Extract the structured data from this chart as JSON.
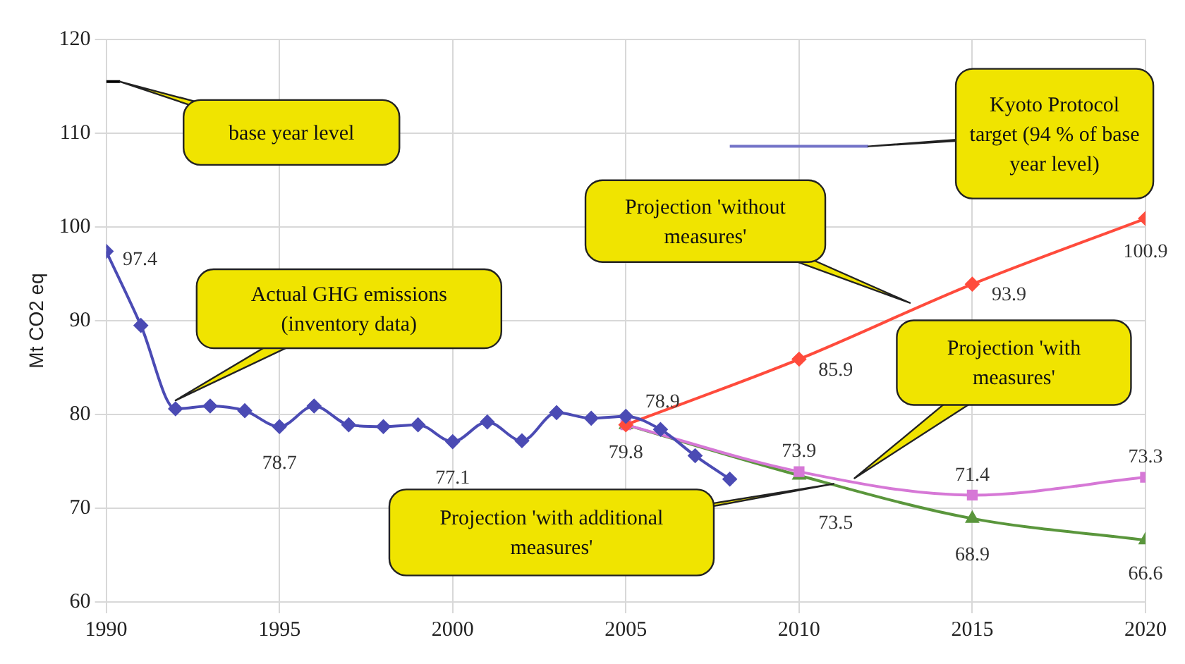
{
  "chart_data": {
    "type": "line",
    "ylabel": "Mt CO2 eq",
    "xlim": [
      1990,
      2020
    ],
    "xticks": [
      1990,
      1995,
      2000,
      2005,
      2010,
      2015,
      2020
    ],
    "ylim": [
      60,
      120
    ],
    "yticks": [
      60,
      70,
      80,
      90,
      100,
      110,
      120
    ],
    "grid": true,
    "series": [
      {
        "color": "#4b4bb4",
        "marker": "diamond",
        "x": [
          1990,
          1991,
          1992,
          1993,
          1994,
          1995,
          1996,
          1997,
          1998,
          1999,
          2000,
          2001,
          2002,
          2003,
          2004,
          2005,
          2006,
          2007,
          2008
        ],
        "values": [
          97.4,
          89.5,
          80.6,
          80.9,
          80.4,
          78.7,
          80.9,
          78.9,
          78.7,
          78.9,
          77.1,
          79.2,
          77.2,
          80.2,
          79.6,
          79.8,
          78.4,
          75.6,
          73.1
        ],
        "value_labels": [
          "97.4",
          null,
          null,
          null,
          null,
          "78.7",
          null,
          null,
          null,
          null,
          "77.1",
          null,
          null,
          null,
          null,
          "79.8",
          null,
          null,
          null
        ]
      },
      {
        "color": "#ff4b3c",
        "marker": "diamond",
        "x": [
          2005,
          2010,
          2015,
          2020
        ],
        "values": [
          78.9,
          85.9,
          93.9,
          100.9
        ],
        "value_labels": [
          "78.9",
          "85.9",
          "93.9",
          "100.9"
        ]
      },
      {
        "color": "#d678d6",
        "marker": "square",
        "x": [
          2005,
          2010,
          2015,
          2020
        ],
        "values": [
          78.9,
          73.9,
          71.4,
          73.3
        ],
        "value_labels": [
          null,
          "73.9",
          "71.4",
          "73.3"
        ]
      },
      {
        "color": "#5a963c",
        "marker": "triangle",
        "x": [
          2005,
          2010,
          2015,
          2020
        ],
        "values": [
          78.9,
          73.5,
          68.9,
          66.6
        ],
        "value_labels": [
          null,
          "73.5",
          "68.9",
          "66.6"
        ]
      },
      {
        "color": "#000000",
        "marker": "none",
        "x": [
          1990,
          1990.4
        ],
        "values": [
          115.5,
          115.5
        ]
      },
      {
        "color": "#7474c8",
        "marker": "none",
        "x": [
          2008,
          2012
        ],
        "values": [
          108.6,
          108.6
        ]
      }
    ],
    "annotations": [
      {
        "text": "base year level",
        "x": 1990.4,
        "y": 115.5
      },
      {
        "text": "Actual GHG emissions (inventory data)",
        "x": 1992,
        "y": 81.5
      },
      {
        "text": "Kyoto Protocol target (94 % of base year level)",
        "x": 2012,
        "y": 108.6
      },
      {
        "text": "Projection 'without measures'",
        "x": 2013.2,
        "y": 91.9
      },
      "Projection 'with measures'",
      {
        "text": "Projection 'with additional measures'",
        "x": 2011,
        "y": 72.6
      }
    ]
  }
}
